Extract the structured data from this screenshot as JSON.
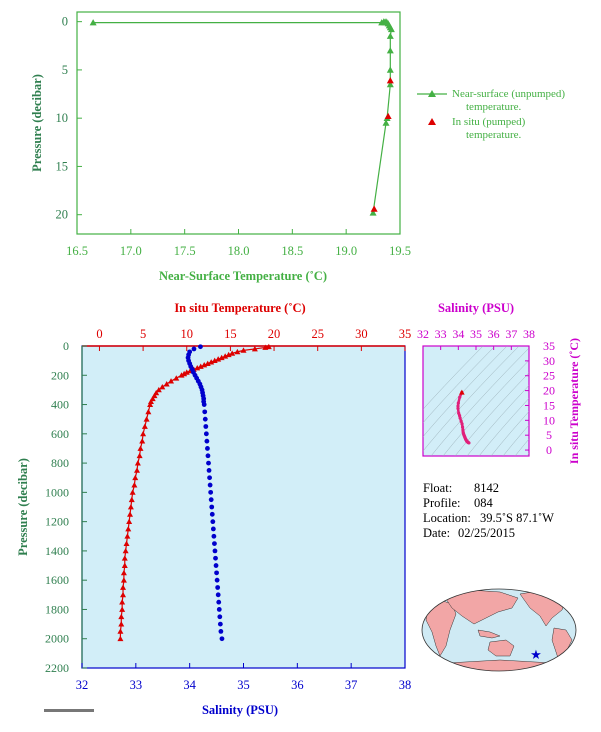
{
  "colors": {
    "green": "#44b044",
    "dark_green": "#2f7f4f",
    "red": "#dd0000",
    "blue": "#0000cc",
    "magenta": "#cc00cc",
    "pink": "#e0207a",
    "panel_bg": "#d2eef8",
    "land": "#f2a6a6",
    "ocean": "#cfeaf4"
  },
  "info": {
    "float_label": "Float:",
    "float_value": "8142",
    "profile_label": "Profile:",
    "profile_value": "084",
    "location_label": "Location:",
    "location_value": "39.5˚S  87.1˚W",
    "date_label": "Date:",
    "date_value": "02/25/2015"
  },
  "chart_data": [
    {
      "type": "scatter",
      "xlabel": "Near-Surface Temperature (˚C)",
      "ylabel": "Pressure (decibar)",
      "xlim": [
        16.5,
        19.5
      ],
      "ylim": [
        22,
        -1
      ],
      "xticks": [
        "16.5",
        "17.0",
        "17.5",
        "18.0",
        "18.5",
        "19.0",
        "19.5"
      ],
      "yticks": [
        "0",
        "5",
        "10",
        "15",
        "20"
      ],
      "legend_position": "right",
      "series": [
        {
          "name": "Near-surface (unpumped) temperature.",
          "style": "line-triangle-green",
          "x": [
            16.65,
            19.33,
            19.35,
            19.36,
            19.37,
            19.38,
            19.39,
            19.4,
            19.41,
            19.42,
            19.41,
            19.41,
            19.41,
            19.41,
            19.38,
            19.37,
            19.25
          ],
          "y": [
            0.1,
            0.1,
            0.0,
            0.1,
            0.0,
            0.1,
            0.2,
            0.4,
            0.6,
            0.8,
            1.5,
            3.0,
            5.0,
            6.5,
            10.0,
            10.5,
            19.8
          ]
        },
        {
          "name": "In situ (pumped) temperature.",
          "style": "triangle-red",
          "x": [
            19.41,
            19.39,
            19.26
          ],
          "y": [
            6.1,
            9.8,
            19.4
          ]
        }
      ]
    },
    {
      "type": "line",
      "title_top_axis": "In situ Temperature (˚C)",
      "title_bottom_axis": "Salinity (PSU)",
      "ylabel": "Pressure (decibar)",
      "ylim": [
        2200,
        0
      ],
      "temperature_xlim": [
        -2,
        35
      ],
      "salinity_xlim": [
        32,
        38
      ],
      "temperature_ticks": [
        "0",
        "5",
        "10",
        "15",
        "20",
        "25",
        "30",
        "35"
      ],
      "salinity_ticks": [
        "32",
        "33",
        "34",
        "35",
        "36",
        "37",
        "38"
      ],
      "pressure_ticks": [
        "0",
        "200",
        "400",
        "600",
        "800",
        "1000",
        "1200",
        "1400",
        "1600",
        "1800",
        "2000",
        "2200"
      ],
      "temperature_profile": {
        "pressure": [
          5,
          10,
          20,
          30,
          40,
          50,
          60,
          70,
          80,
          90,
          100,
          110,
          120,
          130,
          140,
          150,
          160,
          170,
          180,
          190,
          200,
          220,
          240,
          260,
          280,
          300,
          320,
          340,
          360,
          380,
          400,
          450,
          500,
          550,
          600,
          650,
          700,
          750,
          800,
          850,
          900,
          950,
          1000,
          1050,
          1100,
          1150,
          1200,
          1250,
          1300,
          1350,
          1400,
          1450,
          1500,
          1550,
          1600,
          1650,
          1700,
          1750,
          1800,
          1850,
          1900,
          1950,
          2000
        ],
        "temperature": [
          19.4,
          19.0,
          17.8,
          16.5,
          15.8,
          15.2,
          14.8,
          14.4,
          14.0,
          13.6,
          13.2,
          12.8,
          12.4,
          12.0,
          11.6,
          11.2,
          10.8,
          10.4,
          10.0,
          9.7,
          9.4,
          8.8,
          8.2,
          7.7,
          7.2,
          6.8,
          6.5,
          6.3,
          6.1,
          5.9,
          5.8,
          5.6,
          5.4,
          5.2,
          5.0,
          4.9,
          4.7,
          4.6,
          4.4,
          4.3,
          4.1,
          4.0,
          3.8,
          3.7,
          3.6,
          3.5,
          3.4,
          3.3,
          3.2,
          3.1,
          3.0,
          2.9,
          2.9,
          2.8,
          2.8,
          2.7,
          2.7,
          2.6,
          2.6,
          2.5,
          2.5,
          2.4,
          2.4
        ]
      },
      "salinity_profile": {
        "pressure": [
          5,
          20,
          40,
          60,
          80,
          100,
          120,
          140,
          160,
          180,
          200,
          220,
          240,
          260,
          280,
          300,
          320,
          340,
          360,
          380,
          400,
          450,
          500,
          550,
          600,
          650,
          700,
          750,
          800,
          850,
          900,
          950,
          1000,
          1050,
          1100,
          1150,
          1200,
          1250,
          1300,
          1350,
          1400,
          1450,
          1500,
          1550,
          1600,
          1650,
          1700,
          1750,
          1800,
          1850,
          1900,
          1950,
          2000
        ],
        "salinity": [
          34.2,
          34.08,
          34.0,
          33.98,
          33.97,
          33.98,
          34.0,
          34.02,
          34.05,
          34.07,
          34.1,
          34.13,
          34.16,
          34.19,
          34.21,
          34.23,
          34.24,
          34.25,
          34.26,
          34.26,
          34.27,
          34.28,
          34.29,
          34.3,
          34.31,
          34.32,
          34.33,
          34.34,
          34.35,
          34.36,
          34.37,
          34.38,
          34.39,
          34.4,
          34.41,
          34.42,
          34.43,
          34.44,
          34.45,
          34.46,
          34.47,
          34.48,
          34.49,
          34.5,
          34.51,
          34.52,
          34.53,
          34.54,
          34.55,
          34.56,
          34.57,
          34.58,
          34.6
        ]
      }
    },
    {
      "type": "scatter",
      "xlabel": "Salinity (PSU)",
      "ylabel": "In situ Temperature (˚C)",
      "xlim": [
        32,
        38
      ],
      "ylim": [
        -2,
        35
      ],
      "xticks": [
        "32",
        "33",
        "34",
        "35",
        "36",
        "37",
        "38"
      ],
      "yticks": [
        "0",
        "5",
        "10",
        "15",
        "20",
        "25",
        "30",
        "35"
      ],
      "x": [
        34.2,
        34.08,
        34.0,
        33.98,
        33.98,
        34.02,
        34.07,
        34.1,
        34.16,
        34.21,
        34.24,
        34.26,
        34.27,
        34.29,
        34.31,
        34.33,
        34.35,
        34.37,
        34.39,
        34.41,
        34.43,
        34.45,
        34.47,
        34.49,
        34.51,
        34.53,
        34.55,
        34.57,
        34.6
      ],
      "y": [
        19.4,
        17.8,
        15.8,
        14.8,
        14.0,
        12.4,
        11.6,
        10.8,
        9.7,
        8.8,
        7.7,
        6.8,
        6.1,
        5.6,
        5.2,
        4.9,
        4.6,
        4.3,
        4.0,
        3.7,
        3.5,
        3.3,
        3.1,
        2.9,
        2.8,
        2.7,
        2.6,
        2.5,
        2.4
      ]
    }
  ]
}
